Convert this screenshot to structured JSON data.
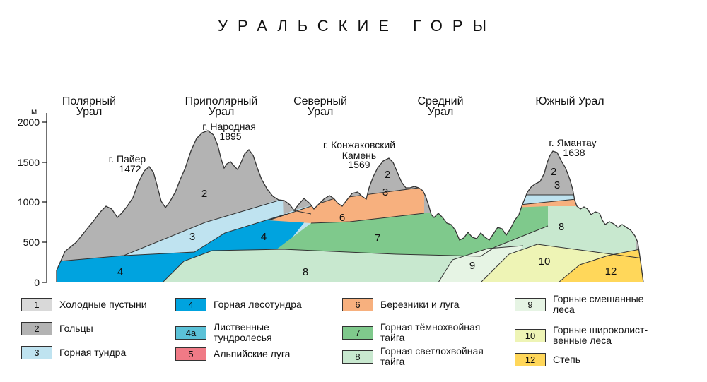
{
  "title": "УРАЛЬСКИЕ ГОРЫ",
  "unit": "м",
  "y_ticks": [
    "0",
    "500",
    "1000",
    "1500",
    "2000"
  ],
  "regions": [
    "Полярный\nУрал",
    "Приполярный\nУрал",
    "Северный\nУрал",
    "Средний\nУрал",
    "Южный Урал"
  ],
  "peaks": [
    {
      "name": "г. Пайер",
      "height": "1472"
    },
    {
      "name": "г. Народная",
      "height": "1895"
    },
    {
      "name": "г. Конжаковский\nКамень",
      "height": "1569"
    },
    {
      "name": "г. Ямантау",
      "height": "1638"
    }
  ],
  "zone_numbers": {
    "z2a": "2",
    "z2b": "2",
    "z2c": "2",
    "z3a": "3",
    "z3b": "3",
    "z3c": "3",
    "z4a": "4",
    "z4b": "4",
    "z6": "6",
    "z7": "7",
    "z8a": "8",
    "z8b": "8",
    "z9": "9",
    "z10": "10",
    "z12": "12"
  },
  "colors": {
    "cold_desert": "#d9d9d9",
    "goltsy": "#b3b3b3",
    "mountain_tundra": "#bfe3f0",
    "forest_tundra": "#00a3df",
    "larch_tundra_forest": "#5bc2d8",
    "alpine_meadows": "#f07a86",
    "birch_meadows": "#f7b07e",
    "dark_taiga": "#7fc98c",
    "light_taiga": "#c8e8cf",
    "mixed_forest": "#e6f4e4",
    "broadleaf_forest": "#eef4b5",
    "steppe": "#ffd75a"
  },
  "legend": [
    {
      "num": "1",
      "label": "Холодные пустыни",
      "color_key": "cold_desert"
    },
    {
      "num": "2",
      "label": "Гольцы",
      "color_key": "goltsy"
    },
    {
      "num": "3",
      "label": "Горная тундра",
      "color_key": "mountain_tundra"
    },
    {
      "num": "4",
      "label": "Горная лесотундра",
      "color_key": "forest_tundra"
    },
    {
      "num": "4а",
      "label": "Лиственные\nтундролесья",
      "color_key": "larch_tundra_forest"
    },
    {
      "num": "5",
      "label": "Альпийские луга",
      "color_key": "alpine_meadows"
    },
    {
      "num": "6",
      "label": "Березники и луга",
      "color_key": "birch_meadows"
    },
    {
      "num": "7",
      "label": "Горная тёмнохвойная\nтайга",
      "color_key": "dark_taiga"
    },
    {
      "num": "8",
      "label": "Горная светлохвойная\nтайга",
      "color_key": "light_taiga"
    },
    {
      "num": "9",
      "label": "Горные смешанные\nлеса",
      "color_key": "mixed_forest"
    },
    {
      "num": "10",
      "label": "Горные широколист-\nвенные леса",
      "color_key": "broadleaf_forest"
    },
    {
      "num": "12",
      "label": "Степь",
      "color_key": "steppe"
    }
  ]
}
